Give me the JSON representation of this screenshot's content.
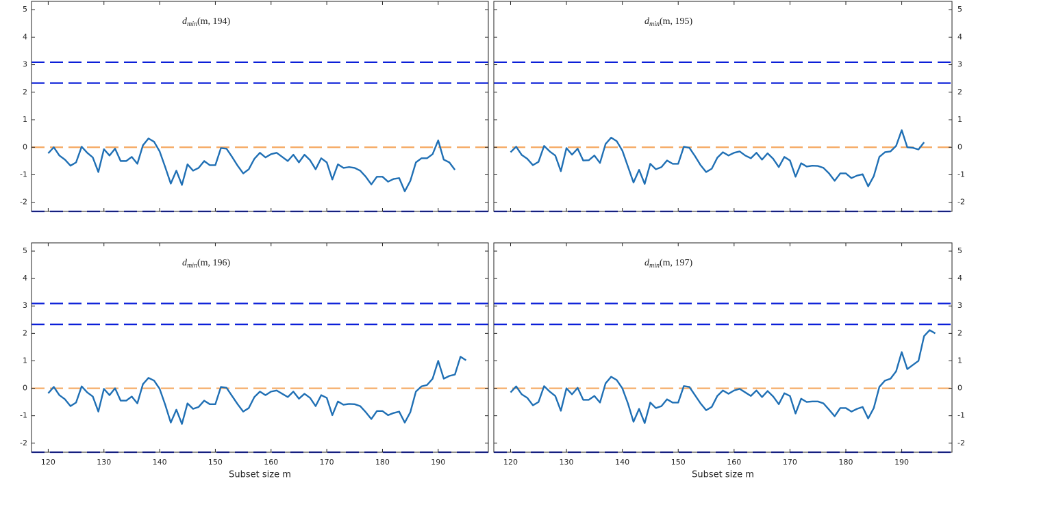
{
  "chart_data": [
    {
      "type": "line",
      "title": "d",
      "title_subscript": "min",
      "title_args": "(m, 194)",
      "yaxis_side": "left",
      "xtick_labels": false,
      "xlim": [
        117,
        199
      ],
      "ylim": [
        -2.33,
        5.3
      ],
      "xticks": [
        120,
        130,
        140,
        150,
        160,
        170,
        180,
        190
      ],
      "yticks": [
        -2,
        -1,
        0,
        1,
        2,
        3,
        4,
        5
      ],
      "reference_lines": [
        {
          "value": 3.09,
          "color": "#0b1fd8"
        },
        {
          "value": 2.33,
          "color": "#0b1fd8"
        },
        {
          "value": 0,
          "color": "#f5a860"
        },
        {
          "value": -2.33,
          "color": "#0b1fd8"
        }
      ],
      "x": [
        120,
        121,
        122,
        123,
        124,
        125,
        126,
        127,
        128,
        129,
        130,
        131,
        132,
        133,
        134,
        135,
        136,
        137,
        138,
        139,
        140,
        141,
        142,
        143,
        144,
        145,
        146,
        147,
        148,
        149,
        150,
        151,
        152,
        153,
        154,
        155,
        156,
        157,
        158,
        159,
        160,
        161,
        162,
        163,
        164,
        165,
        166,
        167,
        168,
        169,
        170,
        171,
        172,
        173,
        174,
        175,
        176,
        177,
        178,
        179,
        180,
        181,
        182,
        183,
        184,
        185,
        186,
        187,
        188,
        189,
        190,
        191,
        192,
        193
      ],
      "series": [
        {
          "color": "#1f6fb4",
          "values": [
            -0.22,
            0.0,
            -0.3,
            -0.45,
            -0.67,
            -0.55,
            0.02,
            -0.2,
            -0.37,
            -0.9,
            -0.07,
            -0.3,
            -0.05,
            -0.5,
            -0.5,
            -0.35,
            -0.6,
            0.07,
            0.32,
            0.2,
            -0.15,
            -0.72,
            -1.32,
            -0.85,
            -1.37,
            -0.62,
            -0.85,
            -0.75,
            -0.5,
            -0.65,
            -0.65,
            -0.03,
            -0.05,
            -0.35,
            -0.67,
            -0.95,
            -0.8,
            -0.42,
            -0.2,
            -0.37,
            -0.25,
            -0.2,
            -0.35,
            -0.5,
            -0.27,
            -0.55,
            -0.27,
            -0.47,
            -0.8,
            -0.4,
            -0.55,
            -1.17,
            -0.62,
            -0.75,
            -0.72,
            -0.75,
            -0.85,
            -1.07,
            -1.35,
            -1.07,
            -1.07,
            -1.25,
            -1.15,
            -1.12,
            -1.6,
            -1.22,
            -0.55,
            -0.4,
            -0.4,
            -0.25,
            0.25,
            -0.45,
            -0.55,
            -0.82
          ]
        }
      ]
    },
    {
      "type": "line",
      "title": "d",
      "title_subscript": "min",
      "title_args": "(m, 195)",
      "yaxis_side": "right",
      "xtick_labels": false,
      "xlim": [
        117,
        199
      ],
      "ylim": [
        -2.33,
        5.3
      ],
      "xticks": [
        120,
        130,
        140,
        150,
        160,
        170,
        180,
        190
      ],
      "yticks": [
        -2,
        -1,
        0,
        1,
        2,
        3,
        4,
        5
      ],
      "reference_lines": [
        {
          "value": 3.09,
          "color": "#0b1fd8"
        },
        {
          "value": 2.33,
          "color": "#0b1fd8"
        },
        {
          "value": 0,
          "color": "#f5a860"
        },
        {
          "value": -2.33,
          "color": "#0b1fd8"
        }
      ],
      "x": [
        120,
        121,
        122,
        123,
        124,
        125,
        126,
        127,
        128,
        129,
        130,
        131,
        132,
        133,
        134,
        135,
        136,
        137,
        138,
        139,
        140,
        141,
        142,
        143,
        144,
        145,
        146,
        147,
        148,
        149,
        150,
        151,
        152,
        153,
        154,
        155,
        156,
        157,
        158,
        159,
        160,
        161,
        162,
        163,
        164,
        165,
        166,
        167,
        168,
        169,
        170,
        171,
        172,
        173,
        174,
        175,
        176,
        177,
        178,
        179,
        180,
        181,
        182,
        183,
        184,
        185,
        186,
        187,
        188,
        189,
        190,
        191,
        192,
        193,
        194
      ],
      "series": [
        {
          "color": "#1f6fb4",
          "values": [
            -0.18,
            0.02,
            -0.28,
            -0.42,
            -0.65,
            -0.53,
            0.05,
            -0.15,
            -0.3,
            -0.87,
            -0.03,
            -0.27,
            -0.05,
            -0.48,
            -0.47,
            -0.3,
            -0.57,
            0.12,
            0.35,
            0.22,
            -0.12,
            -0.7,
            -1.28,
            -0.82,
            -1.33,
            -0.6,
            -0.8,
            -0.72,
            -0.48,
            -0.6,
            -0.6,
            0.02,
            -0.02,
            -0.32,
            -0.65,
            -0.9,
            -0.78,
            -0.38,
            -0.18,
            -0.3,
            -0.2,
            -0.15,
            -0.3,
            -0.4,
            -0.2,
            -0.45,
            -0.22,
            -0.42,
            -0.72,
            -0.35,
            -0.48,
            -1.07,
            -0.58,
            -0.7,
            -0.67,
            -0.68,
            -0.75,
            -0.95,
            -1.22,
            -0.95,
            -0.95,
            -1.12,
            -1.03,
            -0.98,
            -1.42,
            -1.05,
            -0.35,
            -0.18,
            -0.15,
            0.05,
            0.62,
            0.0,
            -0.02,
            -0.08,
            0.18
          ]
        }
      ]
    },
    {
      "type": "line",
      "title": "d",
      "title_subscript": "min",
      "title_args": "(m, 196)",
      "yaxis_side": "left",
      "xtick_labels": true,
      "xlabel": "Subset size m",
      "xlim": [
        117,
        199
      ],
      "ylim": [
        -2.33,
        5.3
      ],
      "xticks": [
        120,
        130,
        140,
        150,
        160,
        170,
        180,
        190
      ],
      "yticks": [
        -2,
        -1,
        0,
        1,
        2,
        3,
        4,
        5
      ],
      "reference_lines": [
        {
          "value": 3.09,
          "color": "#0b1fd8"
        },
        {
          "value": 2.33,
          "color": "#0b1fd8"
        },
        {
          "value": 0,
          "color": "#f5a860"
        },
        {
          "value": -2.33,
          "color": "#0b1fd8"
        }
      ],
      "x": [
        120,
        121,
        122,
        123,
        124,
        125,
        126,
        127,
        128,
        129,
        130,
        131,
        132,
        133,
        134,
        135,
        136,
        137,
        138,
        139,
        140,
        141,
        142,
        143,
        144,
        145,
        146,
        147,
        148,
        149,
        150,
        151,
        152,
        153,
        154,
        155,
        156,
        157,
        158,
        159,
        160,
        161,
        162,
        163,
        164,
        165,
        166,
        167,
        168,
        169,
        170,
        171,
        172,
        173,
        174,
        175,
        176,
        177,
        178,
        179,
        180,
        181,
        182,
        183,
        184,
        185,
        186,
        187,
        188,
        189,
        190,
        191,
        192,
        193,
        194,
        195
      ],
      "series": [
        {
          "color": "#1f6fb4",
          "values": [
            -0.18,
            0.05,
            -0.25,
            -0.4,
            -0.65,
            -0.52,
            0.07,
            -0.15,
            -0.3,
            -0.85,
            -0.02,
            -0.25,
            0.0,
            -0.45,
            -0.45,
            -0.3,
            -0.55,
            0.15,
            0.38,
            0.28,
            -0.02,
            -0.6,
            -1.25,
            -0.78,
            -1.3,
            -0.55,
            -0.75,
            -0.68,
            -0.45,
            -0.58,
            -0.58,
            0.05,
            0.02,
            -0.28,
            -0.58,
            -0.85,
            -0.72,
            -0.32,
            -0.12,
            -0.25,
            -0.12,
            -0.08,
            -0.2,
            -0.32,
            -0.12,
            -0.38,
            -0.2,
            -0.35,
            -0.65,
            -0.25,
            -0.35,
            -0.98,
            -0.48,
            -0.6,
            -0.57,
            -0.58,
            -0.65,
            -0.87,
            -1.12,
            -0.83,
            -0.83,
            -0.98,
            -0.9,
            -0.85,
            -1.25,
            -0.87,
            -0.12,
            0.07,
            0.12,
            0.35,
            1.0,
            0.35,
            0.45,
            0.5,
            1.15,
            1.02
          ]
        }
      ]
    },
    {
      "type": "line",
      "title": "d",
      "title_subscript": "min",
      "title_args": "(m, 197)",
      "yaxis_side": "right",
      "xtick_labels": true,
      "xlabel": "Subset size m",
      "xlim": [
        117,
        199
      ],
      "ylim": [
        -2.33,
        5.3
      ],
      "xticks": [
        120,
        130,
        140,
        150,
        160,
        170,
        180,
        190
      ],
      "yticks": [
        -2,
        -1,
        0,
        1,
        2,
        3,
        4,
        5
      ],
      "reference_lines": [
        {
          "value": 3.09,
          "color": "#0b1fd8"
        },
        {
          "value": 2.33,
          "color": "#0b1fd8"
        },
        {
          "value": 0,
          "color": "#f5a860"
        },
        {
          "value": -2.33,
          "color": "#0b1fd8"
        }
      ],
      "x": [
        120,
        121,
        122,
        123,
        124,
        125,
        126,
        127,
        128,
        129,
        130,
        131,
        132,
        133,
        134,
        135,
        136,
        137,
        138,
        139,
        140,
        141,
        142,
        143,
        144,
        145,
        146,
        147,
        148,
        149,
        150,
        151,
        152,
        153,
        154,
        155,
        156,
        157,
        158,
        159,
        160,
        161,
        162,
        163,
        164,
        165,
        166,
        167,
        168,
        169,
        170,
        171,
        172,
        173,
        174,
        175,
        176,
        177,
        178,
        179,
        180,
        181,
        182,
        183,
        184,
        185,
        186,
        187,
        188,
        189,
        190,
        191,
        192,
        193,
        194,
        195,
        196
      ],
      "series": [
        {
          "color": "#1f6fb4",
          "values": [
            -0.15,
            0.07,
            -0.22,
            -0.35,
            -0.62,
            -0.5,
            0.08,
            -0.12,
            -0.28,
            -0.82,
            0.0,
            -0.22,
            0.02,
            -0.42,
            -0.42,
            -0.28,
            -0.52,
            0.18,
            0.42,
            0.3,
            0.0,
            -0.55,
            -1.22,
            -0.75,
            -1.27,
            -0.52,
            -0.72,
            -0.65,
            -0.4,
            -0.52,
            -0.52,
            0.08,
            0.05,
            -0.25,
            -0.55,
            -0.8,
            -0.68,
            -0.28,
            -0.08,
            -0.2,
            -0.08,
            -0.02,
            -0.15,
            -0.28,
            -0.08,
            -0.32,
            -0.1,
            -0.3,
            -0.58,
            -0.18,
            -0.28,
            -0.92,
            -0.38,
            -0.5,
            -0.48,
            -0.48,
            -0.55,
            -0.78,
            -1.02,
            -0.72,
            -0.72,
            -0.85,
            -0.75,
            -0.68,
            -1.1,
            -0.72,
            0.05,
            0.28,
            0.35,
            0.62,
            1.32,
            0.7,
            0.85,
            1.0,
            1.9,
            2.12,
            2.0
          ]
        }
      ]
    }
  ]
}
